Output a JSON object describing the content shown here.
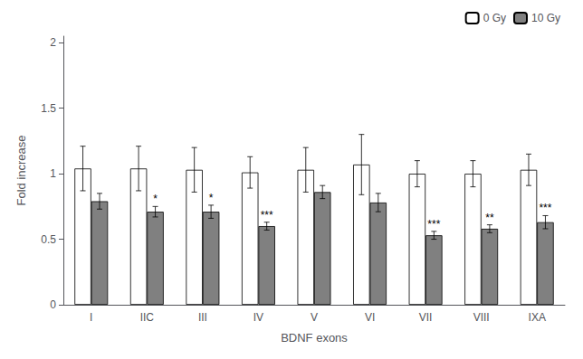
{
  "chart_data": {
    "type": "bar",
    "categories": [
      "I",
      "IIC",
      "III",
      "IV",
      "V",
      "VI",
      "VII",
      "VIII",
      "IXA"
    ],
    "series": [
      {
        "name": "0 Gy",
        "color": "#ffffff",
        "values": [
          1.04,
          1.04,
          1.03,
          1.01,
          1.03,
          1.07,
          1.0,
          1.0,
          1.03
        ],
        "errors": [
          0.17,
          0.17,
          0.17,
          0.12,
          0.17,
          0.23,
          0.1,
          0.1,
          0.12
        ]
      },
      {
        "name": "10 Gy",
        "color": "#808080",
        "values": [
          0.79,
          0.71,
          0.71,
          0.6,
          0.86,
          0.78,
          0.53,
          0.58,
          0.63
        ],
        "errors": [
          0.06,
          0.04,
          0.05,
          0.03,
          0.05,
          0.07,
          0.03,
          0.03,
          0.05
        ],
        "significance": [
          null,
          "*",
          "*",
          "***",
          null,
          null,
          "***",
          "**",
          "***"
        ]
      }
    ],
    "xlabel": "BDNF exons",
    "ylabel": "Fold increase",
    "ylim": [
      0,
      2.05
    ],
    "yticks": [
      0,
      0.5,
      1,
      1.5,
      2
    ],
    "legend": "upper right",
    "grid": false
  }
}
